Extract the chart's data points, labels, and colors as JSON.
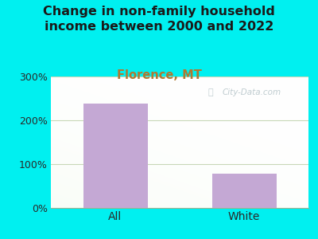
{
  "title": "Change in non-family household\nincome between 2000 and 2022",
  "subtitle": "Florence, MT",
  "categories": [
    "All",
    "White"
  ],
  "values": [
    238,
    78
  ],
  "bar_color": "#c4a8d4",
  "title_fontsize": 11.5,
  "subtitle_fontsize": 10.5,
  "subtitle_color": "#b07830",
  "title_color": "#1a1a1a",
  "tick_label_color": "#2a2a2a",
  "ylim": [
    0,
    300
  ],
  "yticks": [
    0,
    100,
    200,
    300
  ],
  "ytick_labels": [
    "0%",
    "100%",
    "200%",
    "300%"
  ],
  "background_outer": "#00f0f0",
  "watermark": "City-Data.com",
  "grid_color": "#c8d8b8",
  "grid_linewidth": 0.8
}
